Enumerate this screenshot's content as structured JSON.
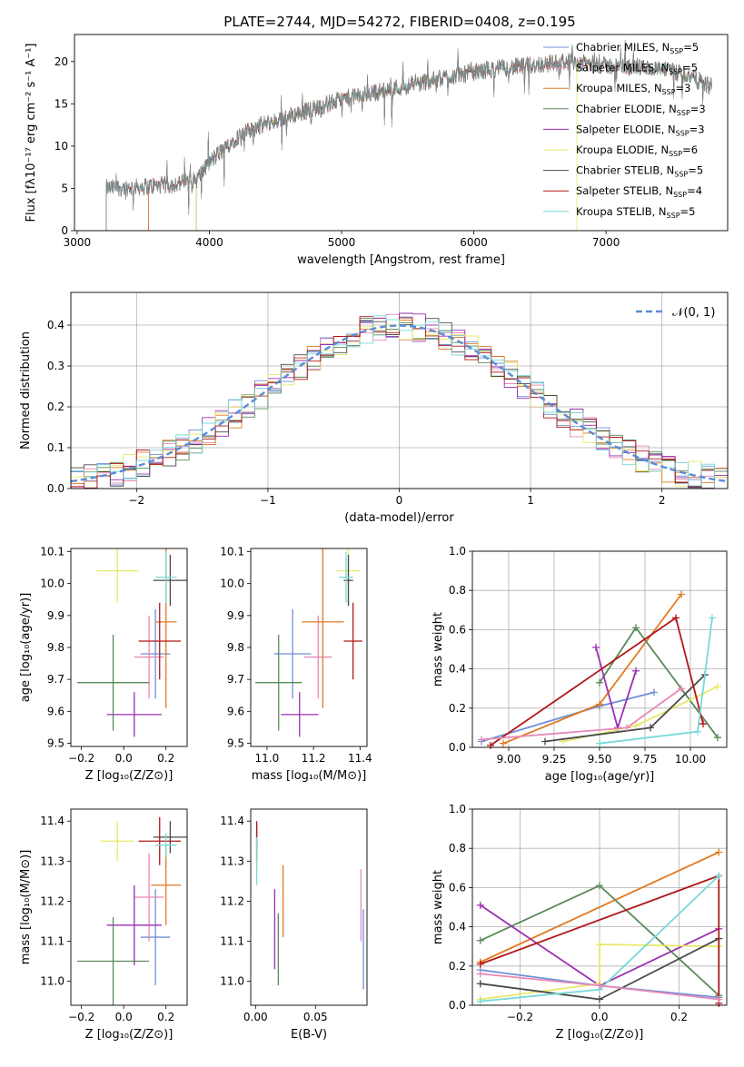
{
  "figure_title": "PLATE=2744, MJD=54272, FIBERID=0408, z=0.195",
  "colors": {
    "c0": "#6f8fd8",
    "c1": "#e17a20",
    "c2": "#d0e86a",
    "c3": "#5a8a5a",
    "c4": "#9a2fb0",
    "c5": "#e8e86a",
    "c6": "#4a4a4a",
    "c7": "#b01818",
    "c8": "#7ad8d8",
    "c9": "#e888b8",
    "gauss": "#5b8bd8"
  },
  "chart_data": [
    {
      "id": "spectrum",
      "type": "line",
      "xlabel": "wavelength [Angstrom, rest frame]",
      "ylabel": "Flux [fλ10⁻¹⁷ erg cm⁻² s⁻¹ A⁻¹]",
      "xlim": [
        2980,
        7920
      ],
      "ylim": [
        0,
        23.2
      ],
      "xticks": [
        3000,
        4000,
        5000,
        6000,
        7000
      ],
      "yticks": [
        0,
        5,
        10,
        15,
        20
      ],
      "grid": false,
      "legend_position": "right",
      "observed": {
        "x_range": [
          3220,
          7800
        ],
        "anchors": [
          [
            3220,
            5.0
          ],
          [
            3500,
            5.2
          ],
          [
            3700,
            5.4
          ],
          [
            3900,
            6.0
          ],
          [
            4000,
            8.0
          ],
          [
            4200,
            11.0
          ],
          [
            4400,
            12.5
          ],
          [
            4700,
            14.0
          ],
          [
            5000,
            15.5
          ],
          [
            5300,
            16.5
          ],
          [
            5600,
            17.5
          ],
          [
            5900,
            18.5
          ],
          [
            6100,
            19.0
          ],
          [
            6400,
            19.5
          ],
          [
            6700,
            20.0
          ],
          [
            7000,
            19.5
          ],
          [
            7300,
            19.3
          ],
          [
            7600,
            18.5
          ],
          [
            7800,
            17.0
          ]
        ]
      },
      "legend": [
        {
          "label": "Chabrier MILES, N",
          "sub": "SSP",
          "suffix": "=5",
          "color": "c0",
          "start": 3540
        },
        {
          "label": "Salpeter MILES, N",
          "sub": "SSP",
          "suffix": "=5",
          "color": "c9",
          "start": 3540
        },
        {
          "label": "Kroupa MILES, N",
          "sub": "SSP",
          "suffix": "=3",
          "color": "c1",
          "start": 3540
        },
        {
          "label": "Chabrier ELODIE, N",
          "sub": "SSP",
          "suffix": "=3",
          "color": "c3",
          "start": 3900
        },
        {
          "label": "Salpeter ELODIE, N",
          "sub": "SSP",
          "suffix": "=3",
          "color": "c4",
          "start": 3900
        },
        {
          "label": "Kroupa ELODIE, N",
          "sub": "SSP",
          "suffix": "=6",
          "color": "c5",
          "start": 3900
        },
        {
          "label": "Chabrier STELIB, N",
          "sub": "SSP",
          "suffix": "=5",
          "color": "c6",
          "start": 3220
        },
        {
          "label": "Salpeter STELIB, N",
          "sub": "SSP",
          "suffix": "=4",
          "color": "c7",
          "start": 3220
        },
        {
          "label": "Kroupa STELIB, N",
          "sub": "SSP",
          "suffix": "=5",
          "color": "c8",
          "start": 3220
        }
      ]
    },
    {
      "id": "residuals",
      "type": "histogram",
      "xlabel": "(data-model)/error",
      "ylabel": "Normed distribution",
      "xlim": [
        -2.5,
        2.5
      ],
      "ylim": [
        0,
        0.48
      ],
      "xticks": [
        -2,
        -1,
        0,
        1,
        2
      ],
      "yticks": [
        0.0,
        0.1,
        0.2,
        0.3,
        0.4
      ],
      "grid": true,
      "bin_width": 0.1,
      "legend": "𝒩(0, 1)",
      "curve": "gaussian(0,1)"
    },
    {
      "id": "age_vs_Z",
      "type": "errorbar",
      "xlabel": "Z [log₁₀(Z/Z⊙)]",
      "ylabel": "age  [log₁₀(age/yr)]",
      "xlim": [
        -0.25,
        0.3
      ],
      "ylim": [
        9.49,
        10.11
      ],
      "xticks": [
        -0.2,
        0.0,
        0.2
      ],
      "yticks": [
        9.5,
        9.6,
        9.7,
        9.8,
        9.9,
        10.0,
        10.1
      ],
      "grid": false,
      "points": [
        {
          "color": "c0",
          "x": 0.15,
          "xerr": 0.07,
          "y": 9.78,
          "yerr": 0.14
        },
        {
          "color": "c9",
          "x": 0.12,
          "xerr": 0.07,
          "y": 9.77,
          "yerr": 0.13
        },
        {
          "color": "c1",
          "x": 0.2,
          "xerr": 0.05,
          "y": 9.88,
          "yerr": 0.27
        },
        {
          "color": "c3",
          "x": -0.05,
          "xerr": 0.17,
          "y": 9.69,
          "yerr": 0.15
        },
        {
          "color": "c4",
          "x": 0.05,
          "xerr": 0.13,
          "y": 9.59,
          "yerr": 0.07
        },
        {
          "color": "c5",
          "x": -0.03,
          "xerr": 0.1,
          "y": 10.04,
          "yerr": 0.1
        },
        {
          "color": "c6",
          "x": 0.22,
          "xerr": 0.08,
          "y": 10.01,
          "yerr": 0.08
        },
        {
          "color": "c7",
          "x": 0.17,
          "xerr": 0.1,
          "y": 9.82,
          "yerr": 0.12
        },
        {
          "color": "c8",
          "x": 0.2,
          "xerr": 0.05,
          "y": 10.02,
          "yerr": 0.08
        }
      ]
    },
    {
      "id": "age_vs_mass",
      "type": "errorbar",
      "xlabel": "mass [log₁₀(M/M⊙)]",
      "ylabel": "",
      "xlim": [
        10.93,
        11.43
      ],
      "ylim": [
        9.49,
        10.11
      ],
      "xticks": [
        11.0,
        11.2,
        11.4
      ],
      "yticks": [
        9.5,
        9.6,
        9.7,
        9.8,
        9.9,
        10.0,
        10.1
      ],
      "grid": false,
      "points": [
        {
          "color": "c0",
          "x": 11.11,
          "xerr": 0.08,
          "y": 9.78,
          "yerr": 0.14
        },
        {
          "color": "c9",
          "x": 11.22,
          "xerr": 0.06,
          "y": 9.77,
          "yerr": 0.13
        },
        {
          "color": "c1",
          "x": 11.24,
          "xerr": 0.09,
          "y": 9.88,
          "yerr": 0.27
        },
        {
          "color": "c3",
          "x": 11.05,
          "xerr": 0.1,
          "y": 9.69,
          "yerr": 0.15
        },
        {
          "color": "c4",
          "x": 11.14,
          "xerr": 0.08,
          "y": 9.59,
          "yerr": 0.07
        },
        {
          "color": "c5",
          "x": 11.35,
          "xerr": 0.05,
          "y": 10.04,
          "yerr": 0.1
        },
        {
          "color": "c6",
          "x": 11.35,
          "xerr": 0.02,
          "y": 10.01,
          "yerr": 0.08
        },
        {
          "color": "c7",
          "x": 11.37,
          "xerr": 0.04,
          "y": 9.82,
          "yerr": 0.12
        },
        {
          "color": "c8",
          "x": 11.34,
          "xerr": 0.03,
          "y": 10.02,
          "yerr": 0.08
        }
      ]
    },
    {
      "id": "weight_vs_age",
      "type": "line",
      "xlabel": "age  [log₁₀(age/yr)]",
      "ylabel": "mass weight",
      "xlim": [
        8.8,
        10.2
      ],
      "ylim": [
        0,
        1.0
      ],
      "xticks": [
        9.0,
        9.25,
        9.5,
        9.75,
        10.0
      ],
      "yticks": [
        0.0,
        0.2,
        0.4,
        0.6,
        0.8,
        1.0
      ],
      "grid": true,
      "series": [
        {
          "color": "c0",
          "x": [
            8.85,
            9.5,
            9.8
          ],
          "y": [
            0.03,
            0.21,
            0.28
          ]
        },
        {
          "color": "c1",
          "x": [
            8.97,
            9.5,
            9.95
          ],
          "y": [
            0.02,
            0.22,
            0.78
          ]
        },
        {
          "color": "c3",
          "x": [
            9.5,
            9.7,
            10.15
          ],
          "y": [
            0.33,
            0.61,
            0.05
          ]
        },
        {
          "color": "c4",
          "x": [
            9.48,
            9.6,
            9.7
          ],
          "y": [
            0.51,
            0.1,
            0.39
          ]
        },
        {
          "color": "c5",
          "x": [
            9.3,
            9.7,
            10.15
          ],
          "y": [
            0.03,
            0.11,
            0.31
          ]
        },
        {
          "color": "c6",
          "x": [
            9.2,
            9.78,
            10.08
          ],
          "y": [
            0.03,
            0.1,
            0.37
          ]
        },
        {
          "color": "c7",
          "x": [
            8.9,
            9.92,
            10.07
          ],
          "y": [
            0.01,
            0.66,
            0.12
          ]
        },
        {
          "color": "c8",
          "x": [
            9.5,
            10.04,
            10.12
          ],
          "y": [
            0.02,
            0.08,
            0.66
          ]
        },
        {
          "color": "c9",
          "x": [
            8.85,
            9.65,
            9.95
          ],
          "y": [
            0.04,
            0.1,
            0.3
          ]
        }
      ]
    },
    {
      "id": "mass_vs_Z",
      "type": "errorbar",
      "xlabel": "Z [log₁₀(Z/Z⊙)]",
      "ylabel": "mass [log₁₀(M/M⊙)]",
      "xlim": [
        -0.25,
        0.3
      ],
      "ylim": [
        10.94,
        11.43
      ],
      "xticks": [
        -0.2,
        0.0,
        0.2
      ],
      "yticks": [
        11.0,
        11.1,
        11.2,
        11.3,
        11.4
      ],
      "grid": false,
      "points": [
        {
          "color": "c0",
          "x": 0.15,
          "xerr": 0.07,
          "y": 11.11,
          "yerr": 0.12
        },
        {
          "color": "c9",
          "x": 0.12,
          "xerr": 0.07,
          "y": 11.21,
          "yerr": 0.11
        },
        {
          "color": "c1",
          "x": 0.2,
          "xerr": 0.07,
          "y": 11.24,
          "yerr": 0.1
        },
        {
          "color": "c3",
          "x": -0.05,
          "xerr": 0.17,
          "y": 11.05,
          "yerr": 0.11
        },
        {
          "color": "c4",
          "x": 0.05,
          "xerr": 0.13,
          "y": 11.14,
          "yerr": 0.1
        },
        {
          "color": "c5",
          "x": -0.03,
          "xerr": 0.08,
          "y": 11.35,
          "yerr": 0.05
        },
        {
          "color": "c6",
          "x": 0.22,
          "xerr": 0.08,
          "y": 11.36,
          "yerr": 0.04
        },
        {
          "color": "c7",
          "x": 0.17,
          "xerr": 0.1,
          "y": 11.35,
          "yerr": 0.06
        },
        {
          "color": "c8",
          "x": 0.2,
          "xerr": 0.05,
          "y": 11.34,
          "yerr": 0.03
        }
      ]
    },
    {
      "id": "mass_vs_ebv",
      "type": "errorbar",
      "xlabel": "E(B-V)",
      "ylabel": "",
      "xlim": [
        -0.004,
        0.093
      ],
      "ylim": [
        10.94,
        11.43
      ],
      "xticks": [
        0.0,
        0.05
      ],
      "yticks": [
        11.0,
        11.1,
        11.2,
        11.3,
        11.4
      ],
      "grid": false,
      "points": [
        {
          "color": "c0",
          "x": 0.09,
          "xerr": 0,
          "y": 11.08,
          "yerr": 0.1
        },
        {
          "color": "c9",
          "x": 0.088,
          "xerr": 0,
          "y": 11.19,
          "yerr": 0.09
        },
        {
          "color": "c1",
          "x": 0.023,
          "xerr": 0,
          "y": 11.2,
          "yerr": 0.09
        },
        {
          "color": "c3",
          "x": 0.019,
          "xerr": 0,
          "y": 11.08,
          "yerr": 0.09
        },
        {
          "color": "c4",
          "x": 0.016,
          "xerr": 0,
          "y": 11.13,
          "yerr": 0.1
        },
        {
          "color": "c5",
          "x": 0.001,
          "xerr": 0,
          "y": 11.32,
          "yerr": 0.04
        },
        {
          "color": "c6",
          "x": 0.001,
          "xerr": 0,
          "y": 11.36,
          "yerr": 0.03
        },
        {
          "color": "c7",
          "x": 0.001,
          "xerr": 0,
          "y": 11.35,
          "yerr": 0.05
        },
        {
          "color": "c8",
          "x": 0.001,
          "xerr": 0,
          "y": 11.3,
          "yerr": 0.06
        }
      ]
    },
    {
      "id": "weight_vs_Z",
      "type": "line",
      "xlabel": "Z [log₁₀(Z/Z⊙)]",
      "ylabel": "mass weight",
      "xlim": [
        -0.32,
        0.32
      ],
      "ylim": [
        0,
        1.0
      ],
      "xticks": [
        -0.2,
        0.0,
        0.2
      ],
      "yticks": [
        0.0,
        0.2,
        0.4,
        0.6,
        0.8,
        1.0
      ],
      "grid": true,
      "series": [
        {
          "color": "c0",
          "x": [
            -0.3,
            0.0,
            0.3
          ],
          "y": [
            0.18,
            0.1,
            0.04
          ]
        },
        {
          "color": "c1",
          "x": [
            -0.3,
            0.3
          ],
          "y": [
            0.22,
            0.78
          ]
        },
        {
          "color": "c3",
          "x": [
            -0.3,
            0.0,
            0.3
          ],
          "y": [
            0.33,
            0.61,
            0.05
          ]
        },
        {
          "color": "c4",
          "x": [
            -0.3,
            0.0,
            0.3
          ],
          "y": [
            0.51,
            0.1,
            0.39
          ]
        },
        {
          "color": "c5",
          "x": [
            -0.3,
            0.0,
            0.0,
            0.3
          ],
          "y": [
            0.03,
            0.11,
            0.31,
            0.3
          ]
        },
        {
          "color": "c6",
          "x": [
            -0.3,
            0.0,
            0.3
          ],
          "y": [
            0.11,
            0.03,
            0.34
          ]
        },
        {
          "color": "c7",
          "x": [
            -0.3,
            0.3,
            0.3
          ],
          "y": [
            0.21,
            0.66,
            0.01
          ]
        },
        {
          "color": "c8",
          "x": [
            -0.3,
            0.0,
            0.3
          ],
          "y": [
            0.02,
            0.08,
            0.66
          ]
        },
        {
          "color": "c9",
          "x": [
            -0.3,
            0.0,
            0.3
          ],
          "y": [
            0.16,
            0.1,
            0.03
          ]
        }
      ]
    }
  ]
}
